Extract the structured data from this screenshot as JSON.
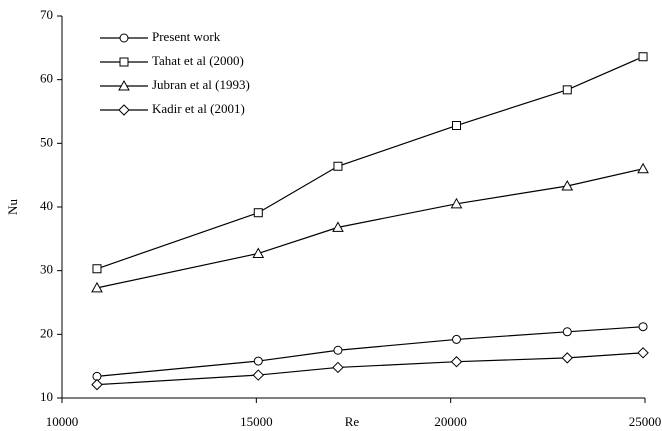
{
  "chart_data": {
    "type": "line",
    "xlabel": "Re",
    "ylabel": "Nu",
    "x": [
      10900,
      15050,
      17100,
      20150,
      23000,
      24950
    ],
    "series": [
      {
        "name": "Present work",
        "color": "#000000",
        "marker": "circle",
        "values": [
          13.4,
          15.8,
          17.5,
          19.2,
          20.4,
          21.2
        ]
      },
      {
        "name": "Tahat et al (2000)",
        "color": "#000000",
        "marker": "square",
        "values": [
          30.3,
          39.1,
          46.4,
          52.8,
          58.4,
          63.6
        ]
      },
      {
        "name": "Jubran et al (1993)",
        "color": "#000000",
        "marker": "triangle",
        "values": [
          27.3,
          32.7,
          36.8,
          40.5,
          43.3,
          46.0
        ]
      },
      {
        "name": "Kadir et al (2001)",
        "color": "#000000",
        "marker": "diamond",
        "values": [
          12.1,
          13.6,
          14.8,
          15.7,
          16.3,
          17.1
        ]
      }
    ],
    "xlim": [
      10000,
      25000
    ],
    "xticks": [
      10000,
      15000,
      20000,
      25000
    ],
    "ylim": [
      10,
      70
    ],
    "yticks": [
      10,
      20,
      30,
      40,
      50,
      60,
      70
    ],
    "grid": false,
    "legend": "upper left"
  }
}
